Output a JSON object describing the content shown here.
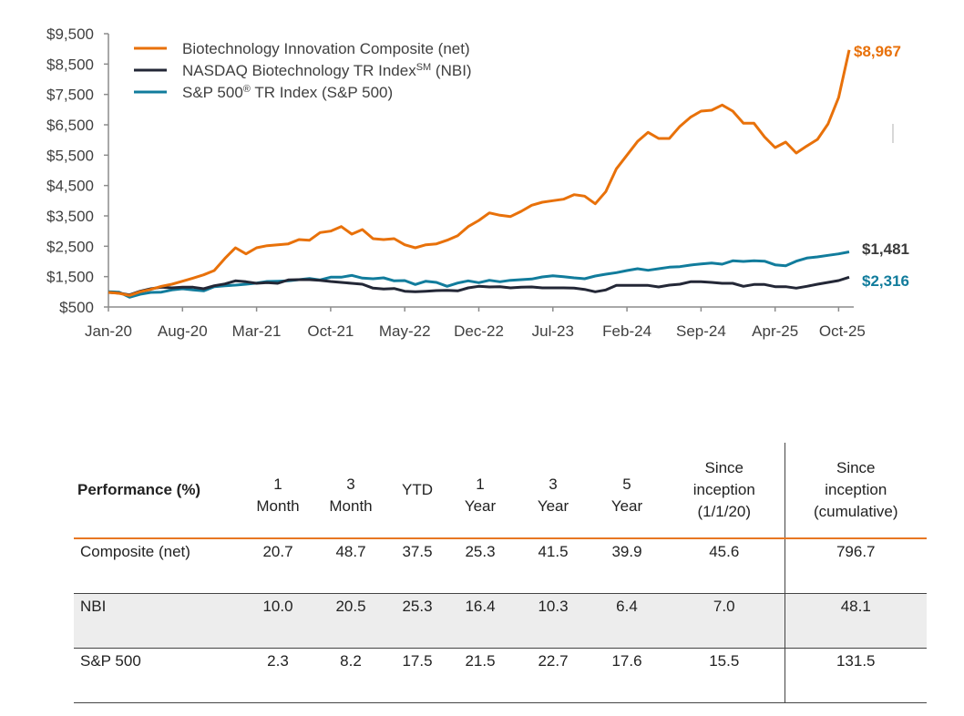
{
  "chart_data": {
    "type": "line",
    "title": "",
    "xlabel": "",
    "ylabel": "",
    "ylim": [
      500,
      9500
    ],
    "yticks": [
      "$9,500",
      "$8,500",
      "$7,500",
      "$6,500",
      "$5,500",
      "$4,500",
      "$3,500",
      "$2,500",
      "$1,500",
      "$500"
    ],
    "ytick_values": [
      9500,
      8500,
      7500,
      6500,
      5500,
      4500,
      3500,
      2500,
      1500,
      500
    ],
    "xticks": [
      "Jan-20",
      "Aug-20",
      "Mar-21",
      "Oct-21",
      "May-22",
      "Dec-22",
      "Jul-23",
      "Feb-24",
      "Sep-24",
      "Apr-25",
      "Oct-25"
    ],
    "xtick_months": [
      0,
      7,
      14,
      21,
      28,
      35,
      42,
      49,
      56,
      63,
      69
    ],
    "x_start": "Jan-20",
    "x_end": "Oct-25",
    "legend_position": "top-left",
    "grid": false,
    "series": [
      {
        "name": "Biotechnology Innovation Composite (net)",
        "legend_main": "Biotechnology Innovation Composite (net)",
        "legend_sup": "",
        "legend_tail": "",
        "color": "#e8710a",
        "end_label": "$8,967",
        "values": [
          980,
          950,
          880,
          1000,
          1080,
          1180,
          1250,
          1350,
          1450,
          1560,
          1700,
          2100,
          2450,
          2250,
          2450,
          2520,
          2550,
          2580,
          2720,
          2700,
          2950,
          3000,
          3150,
          2900,
          3050,
          2750,
          2720,
          2750,
          2550,
          2450,
          2550,
          2580,
          2700,
          2850,
          3150,
          3350,
          3600,
          3520,
          3480,
          3650,
          3850,
          3950,
          4000,
          4050,
          4200,
          4150,
          3900,
          4300,
          5050,
          5500,
          5950,
          6250,
          6050,
          6050,
          6450,
          6750,
          6950,
          6980,
          7150,
          6950,
          6550,
          6550,
          6100,
          5750,
          5930,
          5570,
          5800,
          6020,
          6530,
          7400,
          8967
        ]
      },
      {
        "name": "NASDAQ Biotechnology TR Index (NBI)",
        "legend_main": "NASDAQ Biotechnology TR Index",
        "legend_sup": "SM",
        "legend_tail": " (NBI)",
        "color": "#232736",
        "end_label": "$1,481",
        "values": [
          980,
          960,
          900,
          1020,
          1100,
          1150,
          1130,
          1150,
          1150,
          1100,
          1200,
          1260,
          1360,
          1330,
          1280,
          1300,
          1280,
          1390,
          1400,
          1400,
          1380,
          1340,
          1310,
          1280,
          1250,
          1120,
          1090,
          1110,
          1020,
          1000,
          1020,
          1040,
          1050,
          1030,
          1130,
          1180,
          1160,
          1170,
          1130,
          1150,
          1160,
          1130,
          1130,
          1130,
          1120,
          1080,
          1000,
          1060,
          1210,
          1210,
          1210,
          1210,
          1160,
          1220,
          1250,
          1330,
          1330,
          1310,
          1280,
          1280,
          1180,
          1240,
          1240,
          1170,
          1170,
          1120,
          1180,
          1250,
          1310,
          1370,
          1481
        ]
      },
      {
        "name": "S&P 500 TR Index (S&P 500)",
        "legend_main": "S&P 500",
        "legend_sup": "®",
        "legend_tail": " TR Index (S&P 500)",
        "color": "#117c9c",
        "end_label": "$2,316",
        "values": [
          1000,
          990,
          820,
          920,
          980,
          990,
          1060,
          1100,
          1060,
          1030,
          1170,
          1200,
          1220,
          1250,
          1290,
          1340,
          1350,
          1360,
          1400,
          1440,
          1390,
          1480,
          1480,
          1540,
          1450,
          1430,
          1460,
          1360,
          1370,
          1240,
          1350,
          1310,
          1180,
          1290,
          1360,
          1300,
          1380,
          1330,
          1380,
          1400,
          1420,
          1490,
          1530,
          1500,
          1460,
          1430,
          1520,
          1580,
          1630,
          1700,
          1760,
          1710,
          1760,
          1810,
          1830,
          1880,
          1920,
          1950,
          1910,
          2020,
          2000,
          2020,
          2010,
          1890,
          1860,
          2010,
          2110,
          2150,
          2200,
          2250,
          2316
        ]
      }
    ]
  },
  "table": {
    "header_label": "Performance (%)",
    "columns": [
      [
        "1",
        "Month"
      ],
      [
        "3",
        "Month"
      ],
      [
        "YTD"
      ],
      [
        "1",
        "Year"
      ],
      [
        "3",
        "Year"
      ],
      [
        "5",
        "Year"
      ],
      [
        "Since",
        "inception",
        "(1/1/20)"
      ],
      [
        "Since",
        "inception",
        "(cumulative)"
      ]
    ],
    "rows": [
      {
        "label": "Composite (net)",
        "values": [
          "20.7",
          "48.7",
          "37.5",
          "25.3",
          "41.5",
          "39.9",
          "45.6",
          "796.7"
        ]
      },
      {
        "label": "NBI",
        "values": [
          "10.0",
          "20.5",
          "25.3",
          "16.4",
          "10.3",
          "6.4",
          "7.0",
          "48.1"
        ]
      },
      {
        "label": "S&P 500",
        "values": [
          "2.3",
          "8.2",
          "17.5",
          "21.5",
          "22.7",
          "17.6",
          "15.5",
          "131.5"
        ]
      }
    ]
  }
}
